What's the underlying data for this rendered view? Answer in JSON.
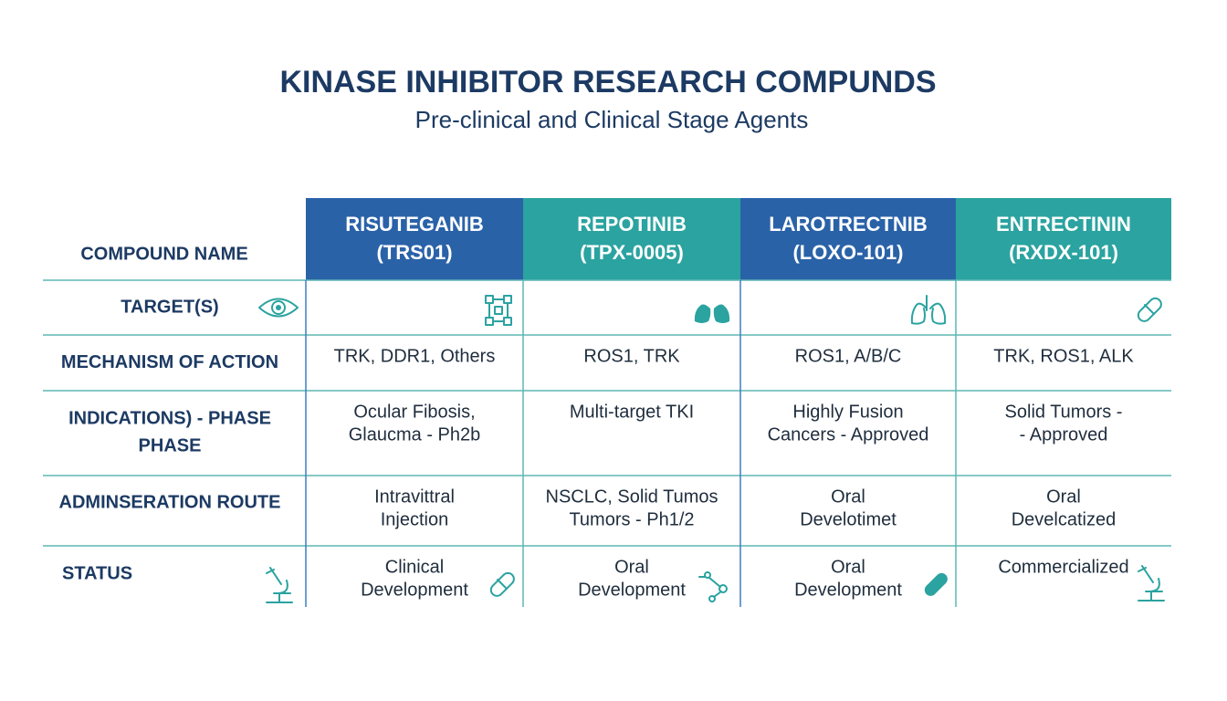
{
  "header": {
    "title": "KINASE INHIBITOR RESEARCH COMPUNDS",
    "subtitle": "Pre-clinical and Clinical Stage Agents"
  },
  "table": {
    "corner": "COMPOUND NAME",
    "compounds": [
      [
        "RISUTEGANIB",
        "(TRS01)"
      ],
      [
        "REPOTINIB",
        "(TPX-0005)"
      ],
      [
        "LAROTRECTNIB",
        "(LOXO-101)"
      ],
      [
        "ENTRECTININ",
        "(RXDX-101)"
      ]
    ],
    "rows": [
      {
        "label": [
          "TARGET(S)"
        ]
      },
      {
        "label": [
          "MECHANISM OF ACTION"
        ],
        "cells": [
          [
            "TRK, DDR1, Others"
          ],
          [
            "ROS1, TRK"
          ],
          [
            "ROS1, A/B/C"
          ],
          [
            "TRK, ROS1, ALK"
          ]
        ]
      },
      {
        "label": [
          "INDICATIONS) - PHASE",
          "PHASE"
        ],
        "cells": [
          [
            "Ocular Fibosis,",
            "Glaucma - Ph2b"
          ],
          [
            "Multi-target TKI"
          ],
          [
            "Highly Fusion",
            "Cancers - Approved"
          ],
          [
            "Solid Tumors -",
            "- Approved"
          ]
        ]
      },
      {
        "label": [
          "ADMINSERATION ROUTE"
        ],
        "cells": [
          [
            "Intravittral",
            "Injection"
          ],
          [
            "NSCLC, Solid Tumos",
            "Tumors - Ph1/2"
          ],
          [
            "Oral",
            "Develotimet"
          ],
          [
            "Oral",
            "Develcatized"
          ]
        ]
      },
      {
        "label": [
          "STATUS"
        ],
        "cells": [
          [
            "Clinical",
            "Development"
          ],
          [
            "Oral",
            "Development"
          ],
          [
            "Oral",
            "Development"
          ],
          [
            "Commercialized"
          ]
        ]
      }
    ]
  }
}
